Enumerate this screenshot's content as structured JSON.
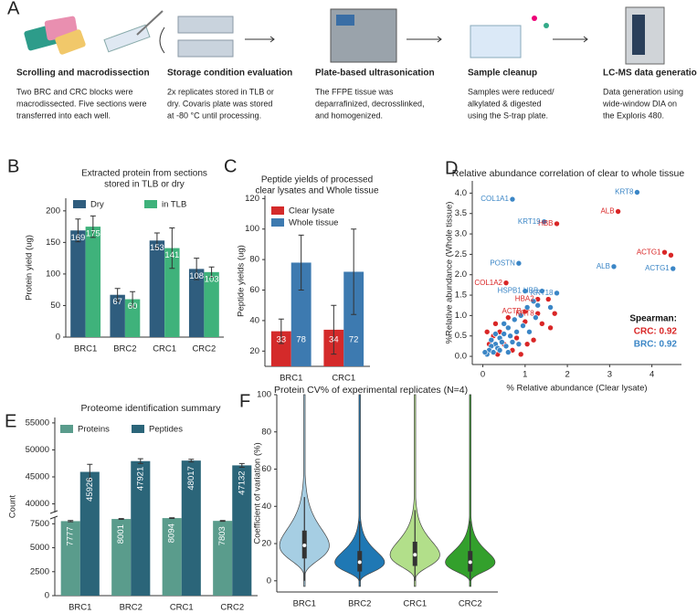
{
  "workflow": {
    "panel": "A",
    "steps": [
      {
        "title": "Scrolling and macrodissection",
        "text": [
          "Two  BRC and  CRC blocks were",
          "macrodissected. Five sections were",
          "transferred into each well."
        ]
      },
      {
        "title": "Storage condition evaluation",
        "text": [
          "2x replicates stored in TLB or",
          "dry.  Covaris plate was stored",
          "at -80 °C until processing."
        ]
      },
      {
        "title": "Plate-based ultrasonication",
        "text": [
          "The FFPE tissue was",
          "deparrafinized, decrosslinked,",
          "and homogenized."
        ]
      },
      {
        "title": "Sample cleanup",
        "text": [
          "Samples were reduced/",
          "alkylated  & digested",
          "using  the  S-trap  plate."
        ]
      },
      {
        "title": "LC-MS data generation",
        "text": [
          "Data generation using",
          "wide-window DIA on",
          "the Exploris 480."
        ]
      }
    ]
  },
  "chart_data": [
    {
      "type": "bar",
      "panel": "B",
      "title": [
        "Extracted protein from sections",
        "stored in TLB or dry"
      ],
      "ylabel": "Protein yield (ug)",
      "categories": [
        "BRC1",
        "BRC2",
        "CRC1",
        "CRC2"
      ],
      "series": [
        {
          "name": "Dry",
          "color": "#2f5d7e",
          "values": [
            169,
            67,
            153,
            108
          ],
          "errors": [
            18,
            10,
            12,
            17
          ]
        },
        {
          "name": "in TLB",
          "color": "#3fb27b",
          "values": [
            175,
            60,
            141,
            103
          ],
          "errors": [
            17,
            12,
            32,
            8
          ]
        }
      ],
      "ylim": [
        0,
        220
      ],
      "yticks": [
        0,
        50,
        100,
        150,
        200
      ]
    },
    {
      "type": "bar",
      "panel": "C",
      "title": [
        "Peptide yields of processed",
        "clear lysates and Whole tissue"
      ],
      "ylabel": "Peptide yields (ug)",
      "categories": [
        "BRC1",
        "CRC1"
      ],
      "series": [
        {
          "name": "Clear lysate",
          "color": "#d42a2a",
          "values": [
            33,
            34
          ],
          "errors": [
            8,
            16
          ]
        },
        {
          "name": "Whole tissue",
          "color": "#3d7ab0",
          "values": [
            78,
            72
          ],
          "errors": [
            18,
            28
          ]
        }
      ],
      "ylim": [
        10,
        122
      ],
      "yticks": [
        20,
        40,
        60,
        80,
        100,
        120
      ]
    },
    {
      "type": "scatter",
      "panel": "D",
      "title": "Relative abundance correlation of clear to whole tissue",
      "xlabel": "% Relative abundance (Clear lysate)",
      "ylabel": "%Relative abundance (Whole tissue)",
      "series": [
        {
          "name": "CRC",
          "color": "#d92626",
          "x": [
            1.75,
            3.2,
            4.3,
            4.45,
            0.55,
            1.3,
            1.0,
            1.3,
            1.55,
            1.7,
            1.4,
            1.6,
            1.0,
            0.6,
            0.4,
            0.3,
            0.8,
            0.5,
            0.25,
            0.15,
            0.7,
            1.2,
            0.9,
            0.1,
            0.35,
            1.05
          ],
          "y": [
            3.25,
            3.55,
            2.55,
            2.48,
            1.8,
            1.4,
            1.1,
            1.05,
            1.4,
            1.05,
            0.8,
            0.7,
            0.85,
            0.95,
            0.6,
            0.8,
            0.45,
            0.3,
            0.5,
            0.3,
            0.15,
            0.4,
            0.05,
            0.6,
            0.05,
            0.3
          ],
          "labels": [
            "HBB",
            "ALB",
            "ACTG1",
            null,
            "COL1A2",
            "HBA2",
            "ACTB",
            "KRT8",
            null,
            null,
            null,
            null,
            null,
            null,
            null,
            null,
            null,
            null,
            null,
            null,
            null,
            null,
            null,
            null,
            null,
            null
          ]
        },
        {
          "name": "BRC",
          "color": "#3b86c6",
          "x": [
            0.7,
            3.65,
            1.45,
            0.85,
            3.1,
            4.5,
            1.0,
            1.4,
            1.75,
            1.2,
            1.05,
            0.9,
            0.75,
            0.6,
            0.5,
            0.4,
            0.3,
            0.2,
            0.15,
            0.1,
            0.25,
            0.35,
            0.45,
            0.55,
            0.65,
            0.8,
            0.95,
            1.25,
            0.05,
            0.3,
            0.5,
            0.7,
            0.2,
            1.1,
            0.4,
            0.6,
            0.85,
            1.3,
            1.6
          ],
          "y": [
            3.85,
            4.02,
            3.3,
            2.28,
            2.2,
            2.15,
            1.6,
            1.6,
            1.55,
            1.35,
            1.2,
            1.0,
            0.9,
            0.7,
            0.55,
            0.45,
            0.3,
            0.25,
            0.15,
            0.05,
            0.1,
            0.2,
            0.35,
            0.25,
            0.5,
            0.6,
            0.75,
            0.95,
            0.1,
            0.55,
            0.8,
            0.35,
            0.4,
            0.6,
            0.15,
            0.1,
            0.3,
            1.25,
            1.2
          ],
          "labels": [
            "COL1A1",
            "KRT8",
            "KRT19",
            "POSTN",
            "ALB",
            "ACTG1",
            "HSPB1",
            "HBB",
            "KRT18",
            null,
            null,
            null,
            null,
            null,
            null,
            null,
            null,
            null,
            null,
            null,
            null,
            null,
            null,
            null,
            null,
            null,
            null,
            null,
            null,
            null,
            null,
            null,
            null,
            null,
            null,
            null,
            null,
            null,
            null
          ]
        }
      ],
      "annotations": [
        {
          "text": "Spearman:"
        },
        {
          "text": "CRC: 0.92",
          "color": "#d92626"
        },
        {
          "text": "BRC: 0.92",
          "color": "#3b86c6"
        }
      ],
      "xlim": [
        -0.25,
        4.7
      ],
      "xticks": [
        0,
        1,
        2,
        3,
        4
      ],
      "ylim": [
        -0.2,
        4.3
      ],
      "yticks": [
        {
          "value": 0,
          "label": "0.0"
        },
        0.5,
        {
          "value": 1,
          "label": "1.0"
        },
        1.5,
        {
          "value": 2,
          "label": "2.0"
        },
        2.5,
        {
          "value": 3,
          "label": "3.0"
        },
        3.5,
        {
          "value": 4,
          "label": "4.0"
        }
      ]
    },
    {
      "type": "bar",
      "panel": "E",
      "title": "Proteome identification summary",
      "ylabel": "Count",
      "categories": [
        "BRC1",
        "BRC2",
        "CRC1",
        "CRC2"
      ],
      "series": [
        {
          "name": "Proteins",
          "color": "#5a9c8c",
          "values": [
            7777,
            8001,
            8094,
            7803
          ],
          "errors": [
            60,
            40,
            40,
            40
          ]
        },
        {
          "name": "Peptides",
          "color": "#2b6579",
          "values": [
            45926,
            47921,
            48017,
            47132
          ],
          "errors": [
            1400,
            450,
            250,
            350
          ]
        }
      ],
      "ylim_lower": [
        0,
        8200
      ],
      "ylim_upper": [
        38400,
        56000
      ],
      "yticks_lower": [
        0,
        2500,
        5000,
        7500
      ],
      "yticks_upper": [
        40000,
        45000,
        50000,
        55000
      ]
    },
    {
      "type": "violin",
      "panel": "F",
      "title": "Protein CV% of experimental replicates (N=4)",
      "ylabel": "Coefficient of variation (%)",
      "categories": [
        "BRC1",
        "BRC2",
        "CRC1",
        "CRC2"
      ],
      "colors": [
        "#a6cee3",
        "#1f78b4",
        "#b2df8a",
        "#33a02c"
      ],
      "medians": [
        19,
        10,
        14,
        10
      ],
      "q1": [
        12,
        5,
        8,
        5
      ],
      "q3": [
        27,
        16,
        21,
        16
      ],
      "whisker_low": [
        0,
        0,
        0,
        0
      ],
      "whisker_high": [
        45,
        32,
        38,
        32
      ],
      "max": [
        100,
        100,
        100,
        100
      ],
      "ylim": [
        -6,
        100
      ],
      "yticks": [
        0,
        20,
        40,
        60,
        80,
        100
      ]
    }
  ]
}
